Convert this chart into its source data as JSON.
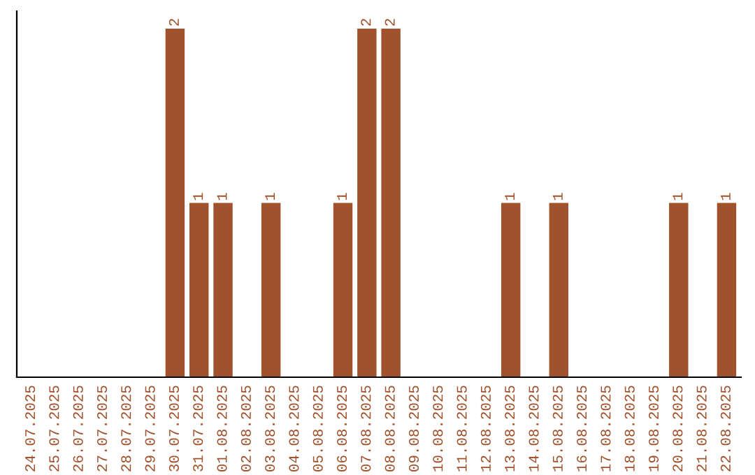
{
  "chart_data": {
    "type": "bar",
    "categories": [
      "24.07.2025",
      "25.07.2025",
      "26.07.2025",
      "27.07.2025",
      "28.07.2025",
      "29.07.2025",
      "30.07.2025",
      "31.07.2025",
      "01.08.2025",
      "02.08.2025",
      "03.08.2025",
      "04.08.2025",
      "05.08.2025",
      "06.08.2025",
      "07.08.2025",
      "08.08.2025",
      "09.08.2025",
      "10.08.2025",
      "11.08.2025",
      "12.08.2025",
      "13.08.2025",
      "14.08.2025",
      "15.08.2025",
      "16.08.2025",
      "17.08.2025",
      "18.08.2025",
      "19.08.2025",
      "20.08.2025",
      "21.08.2025",
      "22.08.2025"
    ],
    "values": [
      0,
      0,
      0,
      0,
      0,
      0,
      2,
      1,
      1,
      0,
      1,
      0,
      0,
      1,
      2,
      2,
      0,
      0,
      0,
      0,
      1,
      0,
      1,
      0,
      0,
      0,
      0,
      1,
      0,
      1
    ],
    "value_labels": [
      null,
      null,
      null,
      null,
      null,
      null,
      "2",
      "1",
      "1",
      null,
      "1",
      null,
      null,
      "1",
      "2",
      "2",
      null,
      null,
      null,
      null,
      "1",
      null,
      "1",
      null,
      null,
      null,
      null,
      "1",
      null,
      "1"
    ],
    "color": "#a0522d",
    "tick_labels": "x",
    "grid": false,
    "legend": false
  }
}
